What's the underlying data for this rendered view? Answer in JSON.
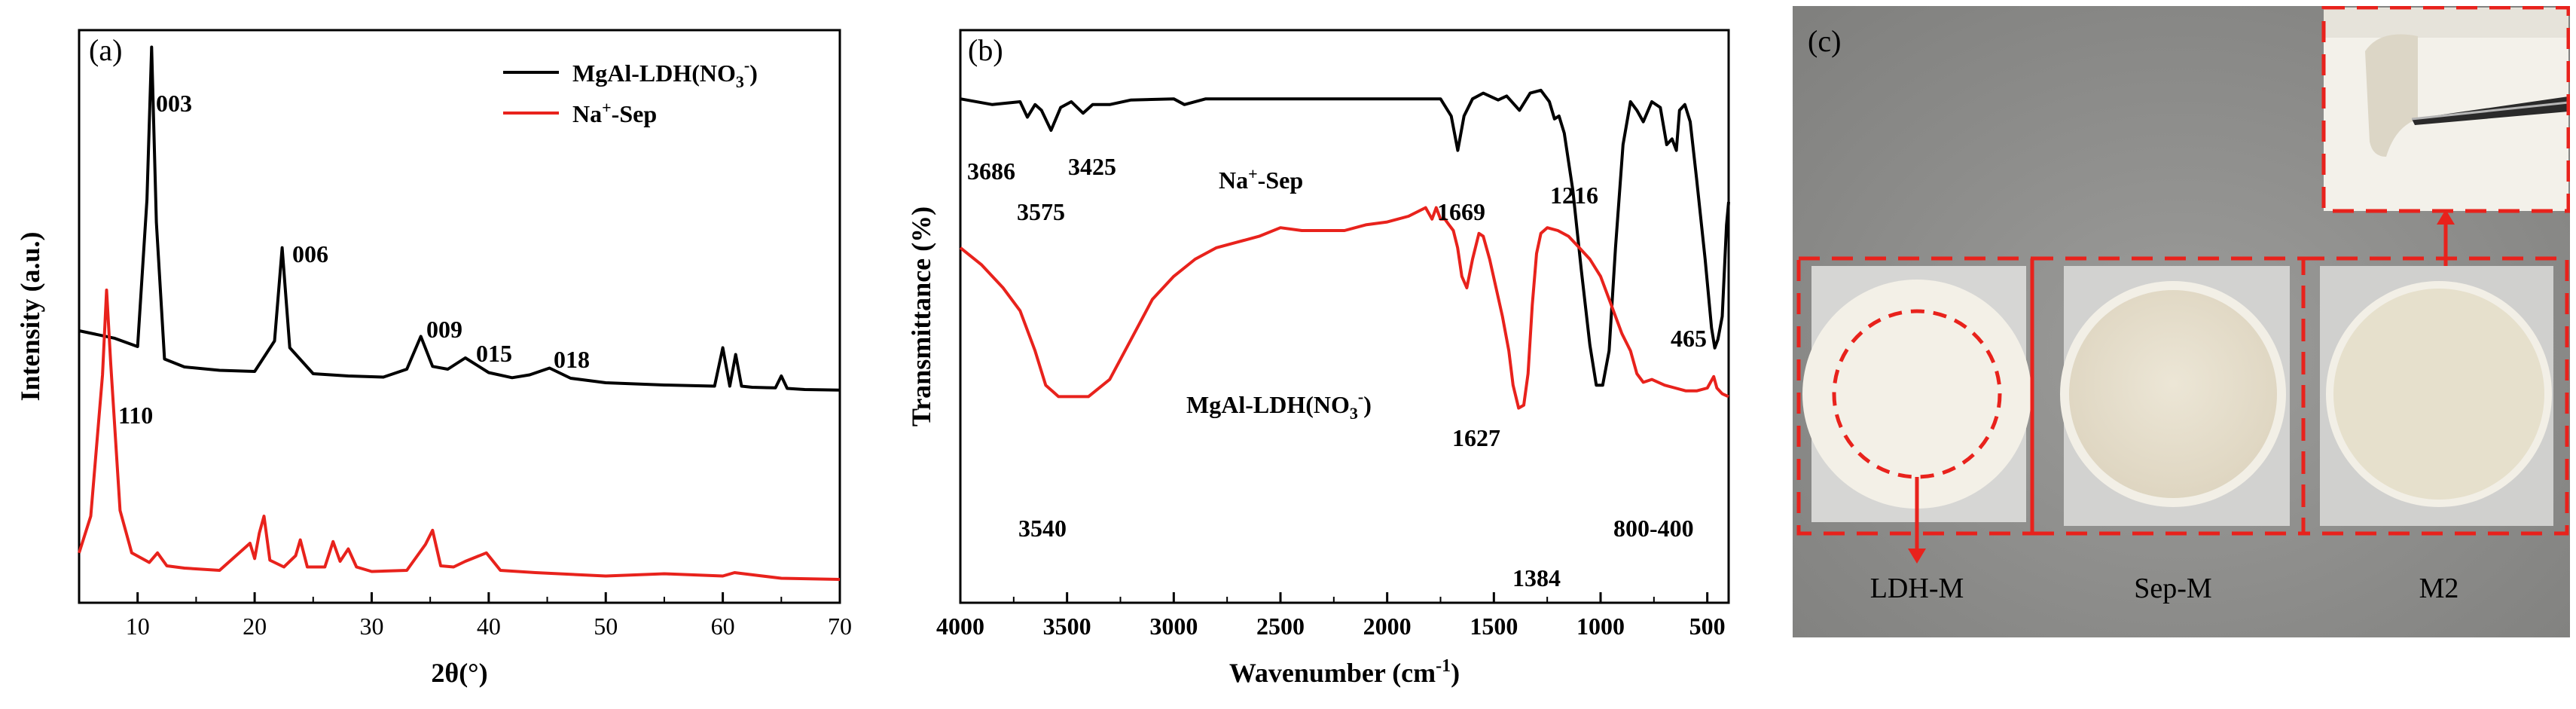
{
  "panel_a": {
    "label": "(a)",
    "xlabel": "2θ(°)",
    "ylabel": "Intensity (a.u.)",
    "legend": [
      {
        "name": "MgAl-LDH(NO",
        "sub": "3",
        "sup": "-",
        "close": ")",
        "color": "#000000"
      },
      {
        "name": "Na",
        "sup": "+",
        "rest": "-Sep",
        "color": "#e8221c"
      }
    ]
  },
  "panel_b": {
    "label": "(b)",
    "xlabel": "Wavenumber (cm",
    "xlabel_sup": "-1",
    "xlabel_close": ")",
    "ylabel": "Transmittance (%)",
    "sep_label_pre": "Na",
    "sep_label_sup": "+",
    "sep_label_post": "-Sep",
    "ldh_label_pre": "MgAl-LDH(NO",
    "ldh_label_sub": "3",
    "ldh_label_sup": "-",
    "ldh_label_post": ")"
  },
  "panel_c": {
    "label": "(c)",
    "captions": [
      "LDH-M",
      "Sep-M",
      "M2"
    ],
    "background_color": "#8f8f8d",
    "dash_color": "#e8221c"
  },
  "chart_data": [
    {
      "type": "line",
      "title": "(a)",
      "xlabel": "2θ(°)",
      "ylabel": "Intensity (a.u.)",
      "xlim": [
        5,
        70
      ],
      "xticks": [
        10,
        20,
        30,
        40,
        50,
        60,
        70
      ],
      "yticks": [],
      "series": [
        {
          "name": "MgAl-LDH(NO3-)",
          "color": "#000000",
          "x": [
            5,
            8,
            10,
            10.8,
            11.2,
            11.6,
            12.3,
            14,
            17,
            20,
            21.7,
            22.35,
            23.0,
            25,
            28,
            31,
            33,
            34.2,
            35.2,
            36.5,
            38,
            40,
            42,
            43.5,
            45.2,
            47,
            50,
            55,
            59.3,
            60.0,
            60.6,
            61.1,
            61.6,
            62.5,
            64.5,
            65.0,
            65.5,
            67,
            70
          ],
          "y": [
            1.08,
            0.95,
            0.8,
            3.4,
            6.1,
            3.0,
            0.58,
            0.44,
            0.38,
            0.36,
            0.9,
            2.55,
            0.78,
            0.32,
            0.28,
            0.26,
            0.4,
            0.98,
            0.45,
            0.4,
            0.6,
            0.34,
            0.25,
            0.3,
            0.42,
            0.24,
            0.16,
            0.12,
            0.1,
            0.78,
            0.1,
            0.66,
            0.1,
            0.08,
            0.07,
            0.28,
            0.06,
            0.04,
            0.03
          ]
        },
        {
          "name": "Na+-Sep",
          "color": "#e8221c",
          "x": [
            5,
            6,
            7.0,
            7.35,
            7.7,
            8.5,
            9.5,
            11,
            11.7,
            12.5,
            14,
            17,
            19.6,
            20.0,
            20.4,
            20.8,
            21.3,
            22.5,
            23.5,
            23.9,
            24.5,
            26,
            26.7,
            27.3,
            28.0,
            28.7,
            30,
            33,
            34.6,
            35.2,
            35.9,
            37,
            38,
            39.8,
            41,
            44,
            50,
            55,
            60,
            61,
            65,
            70
          ],
          "y": [
            0.55,
            1.2,
            3.7,
            5.2,
            3.9,
            1.3,
            0.55,
            0.38,
            0.55,
            0.32,
            0.28,
            0.24,
            0.72,
            0.45,
            0.9,
            1.2,
            0.42,
            0.3,
            0.5,
            0.78,
            0.3,
            0.3,
            0.75,
            0.4,
            0.62,
            0.3,
            0.22,
            0.24,
            0.7,
            0.95,
            0.32,
            0.3,
            0.4,
            0.55,
            0.24,
            0.2,
            0.14,
            0.18,
            0.14,
            0.2,
            0.1,
            0.08
          ]
        }
      ],
      "annotations": [
        "003",
        "006",
        "009",
        "015",
        "018",
        "110"
      ]
    },
    {
      "type": "line",
      "title": "(b)",
      "xlabel": "Wavenumber (cm-1)",
      "ylabel": "Transmittance (%)",
      "xlim": [
        4000,
        400
      ],
      "xticks": [
        4000,
        3500,
        3000,
        2500,
        2000,
        1500,
        1000,
        500
      ],
      "yticks": [],
      "series": [
        {
          "name": "Na+-Sep",
          "color": "#000000",
          "x": [
            4000,
            3850,
            3720,
            3686,
            3650,
            3620,
            3575,
            3530,
            3480,
            3425,
            3380,
            3300,
            3200,
            3000,
            2950,
            2850,
            2500,
            2000,
            1900,
            1750,
            1700,
            1669,
            1640,
            1600,
            1550,
            1480,
            1440,
            1380,
            1330,
            1280,
            1240,
            1216,
            1195,
            1170,
            1130,
            1090,
            1050,
            1020,
            990,
            960,
            930,
            895,
            860,
            830,
            800,
            760,
            720,
            690,
            665,
            645,
            630,
            605,
            580,
            550,
            510,
            480,
            465,
            450,
            430,
            410,
            400
          ],
          "y": [
            88.0,
            87.0,
            87.5,
            84.8,
            87.0,
            86.0,
            82.5,
            86.5,
            87.5,
            85.5,
            87.0,
            87.0,
            87.8,
            88.0,
            87.0,
            88.0,
            88.0,
            88.0,
            88.0,
            88.0,
            85.0,
            79.0,
            85.0,
            88.0,
            89.0,
            87.8,
            88.5,
            86.0,
            89.0,
            89.5,
            87.5,
            84.5,
            85.0,
            82.0,
            72.0,
            58.0,
            45.0,
            38.0,
            38.0,
            44.0,
            62.0,
            80.0,
            87.5,
            86.0,
            84.0,
            87.5,
            86.5,
            80.0,
            81.0,
            79.0,
            86.0,
            87.0,
            84.0,
            74.0,
            60.0,
            48.0,
            44.5,
            46.0,
            50.0,
            66.0,
            70.0
          ]
        },
        {
          "name": "MgAl-LDH(NO3-)",
          "color": "#e8221c",
          "x": [
            4000,
            3900,
            3800,
            3720,
            3650,
            3600,
            3540,
            3460,
            3400,
            3300,
            3200,
            3100,
            3000,
            2900,
            2800,
            2700,
            2600,
            2500,
            2400,
            2300,
            2200,
            2100,
            2000,
            1900,
            1820,
            1790,
            1770,
            1750,
            1730,
            1710,
            1690,
            1670,
            1650,
            1627,
            1600,
            1570,
            1550,
            1520,
            1490,
            1460,
            1430,
            1410,
            1384,
            1360,
            1340,
            1320,
            1300,
            1280,
            1250,
            1200,
            1150,
            1100,
            1050,
            1000,
            950,
            900,
            860,
            830,
            800,
            760,
            700,
            650,
            600,
            550,
            500,
            470,
            455,
            430,
            400
          ],
          "y": [
            62.0,
            59.0,
            55.0,
            51.0,
            44.0,
            38.0,
            36.0,
            36.0,
            36.0,
            39.0,
            46.0,
            53.0,
            57.0,
            60.0,
            62.0,
            63.0,
            64.0,
            65.5,
            65.0,
            65.0,
            65.0,
            66.0,
            66.5,
            67.5,
            69.0,
            67.0,
            69.0,
            67.0,
            67.0,
            66.0,
            65.0,
            62.0,
            57.0,
            55.0,
            60.0,
            64.5,
            64.0,
            60.0,
            55.0,
            50.0,
            44.0,
            38.0,
            34.0,
            34.5,
            40.0,
            52.0,
            61.0,
            64.5,
            65.5,
            65.0,
            64.0,
            62.0,
            60.0,
            57.0,
            52.0,
            47.0,
            44.0,
            40.0,
            38.5,
            39.0,
            38.0,
            37.5,
            37.0,
            37.0,
            37.5,
            39.5,
            37.5,
            36.5,
            36.0
          ]
        }
      ],
      "annotations": [
        "3686",
        "3575",
        "3425",
        "1669",
        "1216",
        "465",
        "1627",
        "3540",
        "1384",
        "800-400"
      ]
    }
  ]
}
